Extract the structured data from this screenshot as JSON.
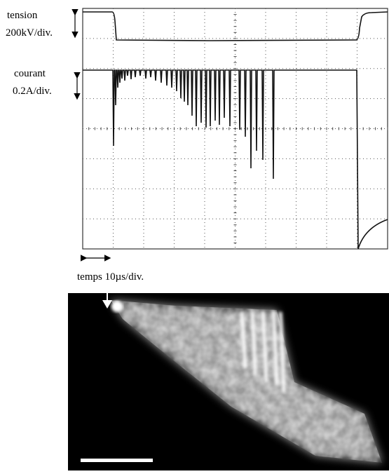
{
  "labels": {
    "tension": "tension",
    "tension_scale": "200kV/div.",
    "current": "courant",
    "current_scale": "0.2A/div.",
    "time_scale": "temps 10µs/div."
  }
}
